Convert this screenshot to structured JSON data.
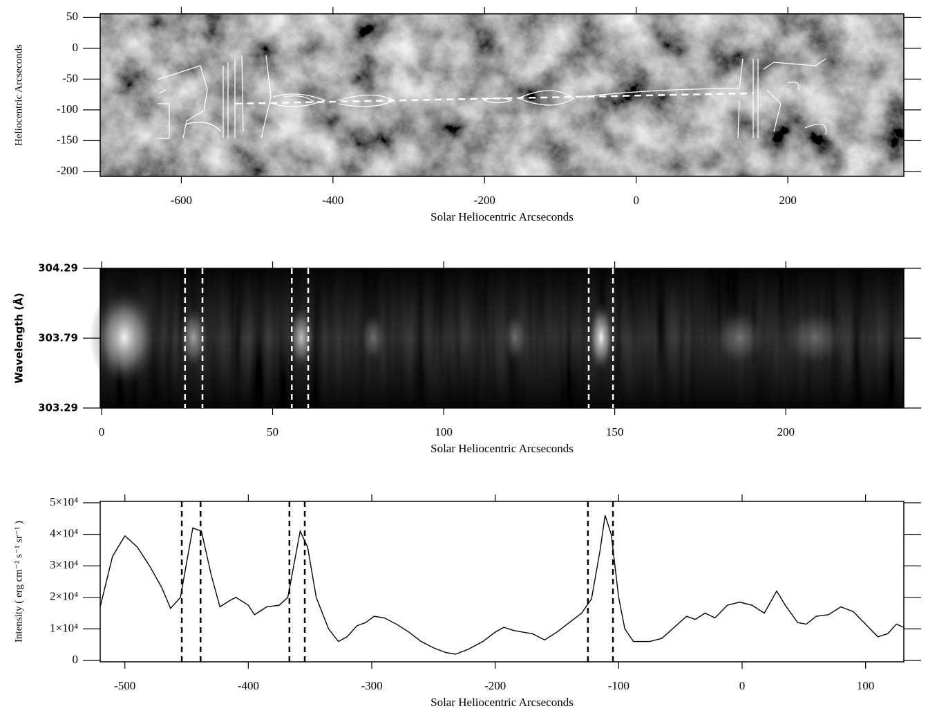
{
  "chart_data": [
    {
      "type": "image",
      "xlabel": "Solar Heliocentric Arcseconds",
      "ylabel": "Heliocentric Arcseconds",
      "xlim": [
        -707,
        353
      ],
      "ylim": [
        -208,
        56
      ],
      "xticks": [
        -600,
        -400,
        -200,
        0,
        200
      ],
      "yticks": [
        50,
        0,
        -50,
        -100,
        -150,
        -200
      ],
      "slit": {
        "x": [
          -529,
          154
        ],
        "y": [
          -90,
          -73
        ]
      }
    },
    {
      "type": "image",
      "xlabel": "Solar Heliocentric Arcseconds",
      "ylabel": "Wavelength (Å)",
      "xlim": [
        -0.4,
        234.5
      ],
      "ylim": [
        303.29,
        304.29
      ],
      "xticks": [
        0,
        50,
        100,
        150,
        200
      ],
      "yticks": [
        303.29,
        303.79,
        304.29
      ],
      "vlines": [
        24.4,
        29.5,
        55.6,
        60.4,
        142.4,
        149.5
      ]
    },
    {
      "type": "line",
      "xlabel": "Solar Heliocentric Arcseconds",
      "ylabel": "Intensity ( erg cm⁻² s⁻¹ sr⁻¹ )",
      "xlim": [
        -520,
        131
      ],
      "ylim": [
        -440,
        50440
      ],
      "xticks": [
        -500,
        -400,
        -300,
        -200,
        -100,
        0,
        100
      ],
      "yticks": [
        0,
        {
          "value": 10000,
          "label": "1×10⁴"
        },
        {
          "value": 20000,
          "label": "2×10⁴"
        },
        {
          "value": 30000,
          "label": "3×10⁴"
        },
        {
          "value": 40000,
          "label": "4×10⁴"
        },
        {
          "value": 50000,
          "label": "5×10⁴"
        }
      ],
      "vlines": [
        -453.9,
        -438.7,
        -366.7,
        -354.3,
        -124.9,
        -104.6
      ],
      "series": [
        {
          "color": "#000000",
          "x": [
            -520,
            -510,
            -500,
            -490,
            -480,
            -470,
            -463,
            -455,
            -445,
            -438,
            -430,
            -423,
            -415,
            -410,
            -400,
            -395,
            -385,
            -375,
            -368,
            -358,
            -352,
            -345,
            -335,
            -327,
            -320,
            -312,
            -305,
            -298,
            -290,
            -280,
            -270,
            -260,
            -250,
            -240,
            -232,
            -222,
            -210,
            -200,
            -193,
            -185,
            -178,
            -170,
            -160,
            -150,
            -140,
            -130,
            -122,
            -115,
            -111,
            -106,
            -100,
            -95,
            -88,
            -75,
            -65,
            -55,
            -45,
            -38,
            -30,
            -22,
            -12,
            -2,
            8,
            18,
            28,
            35,
            45,
            52,
            60,
            70,
            80,
            90,
            100,
            110,
            118,
            125,
            131
          ],
          "values": [
            17000,
            33000,
            39500,
            36000,
            30000,
            23000,
            16500,
            20000,
            42000,
            41000,
            27000,
            17000,
            19000,
            20000,
            17500,
            14500,
            17000,
            17500,
            20000,
            41000,
            36000,
            20000,
            10000,
            6000,
            7500,
            11000,
            12000,
            14000,
            13500,
            11500,
            9000,
            6000,
            4000,
            2500,
            2000,
            3500,
            6000,
            9000,
            10500,
            9500,
            9000,
            8500,
            6500,
            9000,
            12000,
            15000,
            19500,
            35000,
            46000,
            40000,
            20000,
            10000,
            6000,
            6000,
            7000,
            10500,
            14000,
            13000,
            15000,
            13500,
            17500,
            18500,
            17500,
            15000,
            22000,
            17500,
            12000,
            11500,
            14000,
            14500,
            17000,
            15500,
            11500,
            7500,
            8500,
            11500,
            10500
          ]
        }
      ]
    }
  ]
}
